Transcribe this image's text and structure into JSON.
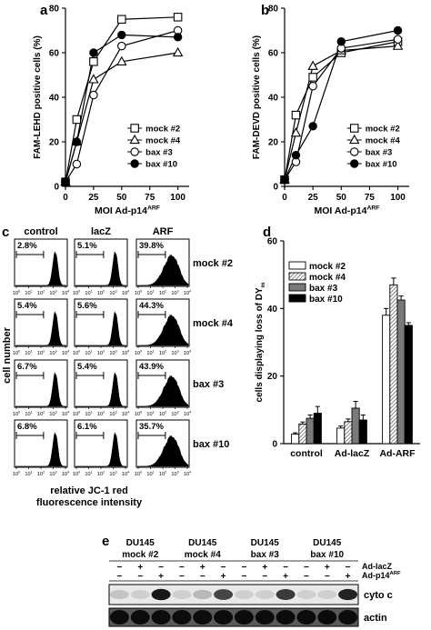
{
  "panels": {
    "a": {
      "letter": "a"
    },
    "b": {
      "letter": "b"
    },
    "c": {
      "letter": "c"
    },
    "d": {
      "letter": "d"
    },
    "e": {
      "letter": "e"
    }
  },
  "chart_data": [
    {
      "id": "a",
      "type": "line",
      "ylabel": "FAM-LEHD positive cells (%)",
      "xlabel": "MOI Ad-p14ARF",
      "xlabel_base": "MOI Ad-p14",
      "xlabel_sup": "ARF",
      "x": [
        0,
        10,
        25,
        50,
        100
      ],
      "xlim": [
        0,
        110
      ],
      "ylim": [
        0,
        80
      ],
      "xticks": [
        0,
        25,
        50,
        75,
        100
      ],
      "yticks": [
        0,
        20,
        40,
        60,
        80
      ],
      "legend": "bottom-right",
      "series": [
        {
          "name": "mock #2",
          "marker": "square-open",
          "values": [
            2,
            30,
            56,
            75,
            76
          ]
        },
        {
          "name": "mock #4",
          "marker": "triangle-open",
          "values": [
            2,
            20,
            48,
            56,
            60
          ]
        },
        {
          "name": "bax #3",
          "marker": "circle-open",
          "values": [
            2,
            10,
            41,
            63,
            70
          ]
        },
        {
          "name": "bax #10",
          "marker": "circle-filled",
          "values": [
            2,
            20,
            60,
            68,
            67
          ]
        }
      ]
    },
    {
      "id": "b",
      "type": "line",
      "ylabel": "FAM-DEVD positive cells (%)",
      "xlabel": "MOI Ad-p14ARF",
      "xlabel_base": "MOI Ad-p14",
      "xlabel_sup": "ARF",
      "x": [
        0,
        10,
        25,
        50,
        100
      ],
      "xlim": [
        0,
        110
      ],
      "ylim": [
        0,
        80
      ],
      "xticks": [
        0,
        25,
        50,
        75,
        100
      ],
      "yticks": [
        0,
        20,
        40,
        60,
        80
      ],
      "legend": "bottom-right",
      "series": [
        {
          "name": "mock #2",
          "marker": "square-open",
          "values": [
            3,
            32,
            49,
            60,
            65
          ]
        },
        {
          "name": "mock #4",
          "marker": "triangle-open",
          "values": [
            3,
            24,
            54,
            61,
            63
          ]
        },
        {
          "name": "bax #3",
          "marker": "circle-open",
          "values": [
            3,
            11,
            45,
            62,
            66
          ]
        },
        {
          "name": "bax #10",
          "marker": "circle-filled",
          "values": [
            3,
            14,
            27,
            65,
            70
          ]
        }
      ]
    },
    {
      "id": "d",
      "type": "bar",
      "ylabel": "cells displaying loss of DYm",
      "ylabel_base": "cells displaying loss of DY",
      "ylabel_sub": "m",
      "categories": [
        "control",
        "Ad-lacZ",
        "Ad-ARF"
      ],
      "ylim": [
        0,
        60
      ],
      "yticks": [
        0,
        20,
        40,
        60
      ],
      "legend": "top-left",
      "series": [
        {
          "name": "mock #2",
          "fill": "white",
          "values": [
            2.8,
            4.6,
            38
          ],
          "errors": [
            0.4,
            0.6,
            2
          ]
        },
        {
          "name": "mock #4",
          "fill": "hatched",
          "values": [
            5.8,
            6.5,
            47
          ],
          "errors": [
            0.6,
            0.8,
            2
          ]
        },
        {
          "name": "bax #3",
          "fill": "gray",
          "values": [
            7.5,
            10.5,
            42.5
          ],
          "errors": [
            1,
            2,
            1.2
          ]
        },
        {
          "name": "bax #10",
          "fill": "black",
          "values": [
            9,
            7,
            35
          ],
          "errors": [
            2,
            1.5,
            0.8
          ]
        }
      ]
    }
  ],
  "flow": {
    "columns": [
      "control",
      "lacZ",
      "ARF"
    ],
    "rows": [
      {
        "label": "mock #2",
        "pcts": [
          "2.8%",
          "5.1%",
          "39.8%"
        ]
      },
      {
        "label": "mock #4",
        "pcts": [
          "5.4%",
          "5.6%",
          "44.3%"
        ]
      },
      {
        "label": "bax #3",
        "pcts": [
          "6.7%",
          "5.4%",
          "43.9%"
        ]
      },
      {
        "label": "bax #10",
        "pcts": [
          "6.8%",
          "6.1%",
          "35.7%"
        ]
      }
    ],
    "ylabel": "cell number",
    "xlabel_line1": "relative JC-1 red",
    "xlabel_line2": "fluorescence intensity",
    "tick_labels": [
      "10",
      "10",
      "10",
      "10",
      "10"
    ],
    "tick_exps": [
      "0",
      "1",
      "2",
      "3",
      "4"
    ]
  },
  "blot": {
    "lanes": [
      {
        "line1": "DU145",
        "line2": "mock #2"
      },
      {
        "line1": "DU145",
        "line2": "mock #4"
      },
      {
        "line1": "DU145",
        "line2": "bax #3"
      },
      {
        "line1": "DU145",
        "line2": "bax #10"
      }
    ],
    "treatment_rows": [
      {
        "label": "Ad-lacZ",
        "base": "Ad-lacZ",
        "sup": "",
        "signs": [
          "−",
          "+",
          "−",
          "−",
          "+",
          "−",
          "−",
          "+",
          "−",
          "−",
          "+",
          "−"
        ]
      },
      {
        "label": "Ad-p14ARF",
        "base": "Ad-p14",
        "sup": "ARF",
        "signs": [
          "−",
          "−",
          "+",
          "−",
          "−",
          "+",
          "−",
          "−",
          "+",
          "−",
          "−",
          "+"
        ]
      }
    ],
    "bands": [
      {
        "label": "cyto c",
        "intensity": [
          0.15,
          0.1,
          0.9,
          0.1,
          0.2,
          0.7,
          0.1,
          0.1,
          0.75,
          0.1,
          0.1,
          0.85
        ]
      },
      {
        "label": "actin",
        "intensity": [
          0.95,
          0.95,
          0.95,
          0.95,
          0.95,
          0.95,
          0.95,
          0.95,
          0.95,
          0.95,
          0.95,
          0.95
        ]
      }
    ]
  }
}
